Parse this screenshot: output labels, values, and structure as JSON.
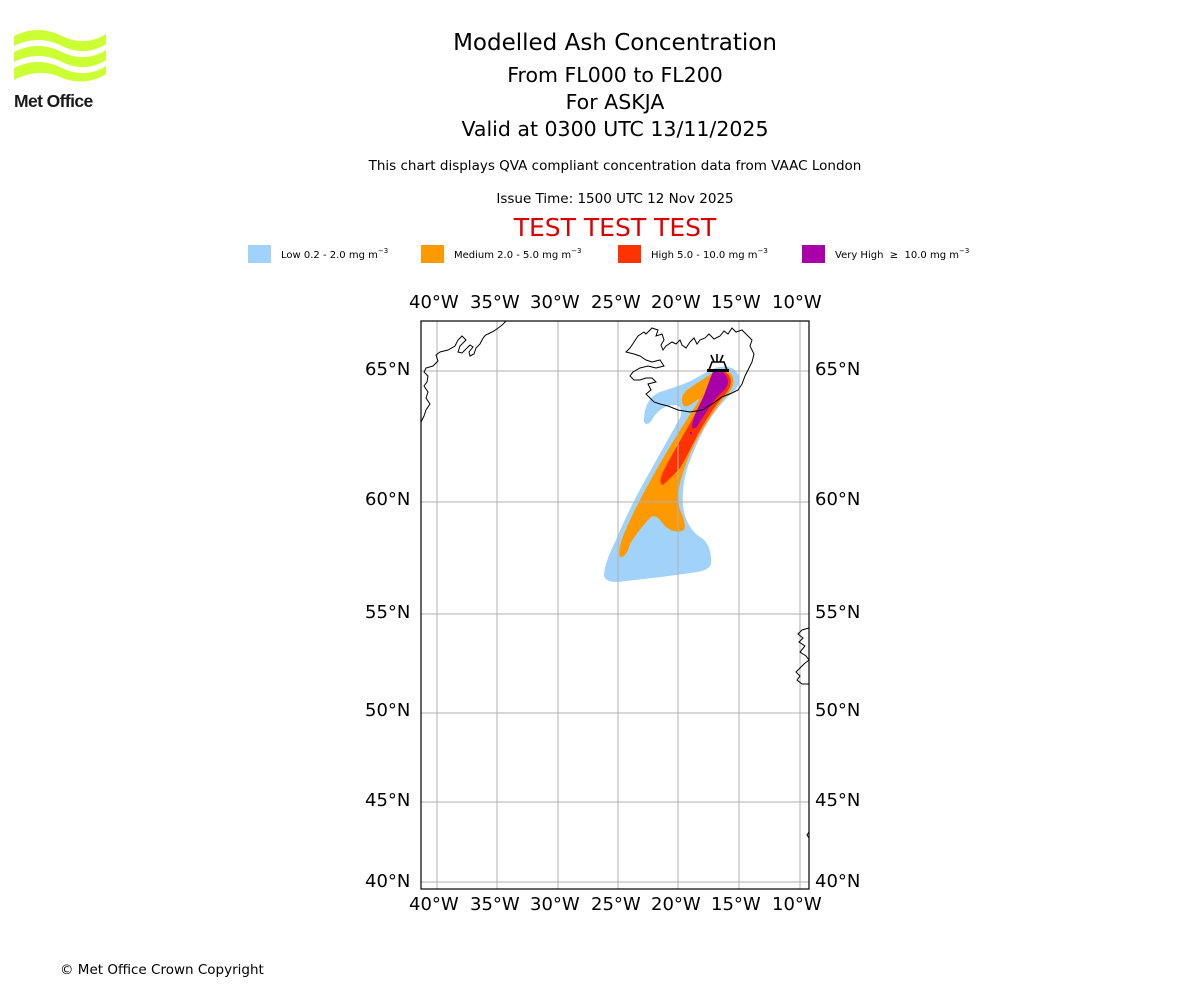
{
  "logo": {
    "text": "Met Office"
  },
  "header": {
    "title": "Modelled Ash Concentration",
    "level_range": "From FL000 to FL200",
    "volcano": "For ASKJA",
    "valid": "Valid at 0300 UTC 13/11/2025",
    "subtitle": "This chart displays QVA compliant concentration data from VAAC London",
    "issue_time": "Issue Time: 1500 UTC 12 Nov 2025",
    "test_banner": "TEST TEST TEST",
    "test_color": "#dd0000"
  },
  "legend": [
    {
      "label": "Low 0.2 - 2.0 mg m",
      "exp": "−3",
      "color": "#a0d2fa"
    },
    {
      "label": "Medium 2.0 - 5.0 mg m",
      "exp": "−3",
      "color": "#ff9900"
    },
    {
      "label": "High 5.0 - 10.0 mg m",
      "exp": "−3",
      "color": "#ff3300"
    },
    {
      "label": "Very High  ≥  10.0 mg m",
      "exp": "−3",
      "color": "#aa00aa"
    }
  ],
  "map": {
    "lon_ticks": [
      "40°W",
      "35°W",
      "30°W",
      "25°W",
      "20°W",
      "15°W",
      "10°W"
    ],
    "lat_ticks": [
      "65°N",
      "60°N",
      "55°N",
      "50°N",
      "45°N",
      "40°N"
    ],
    "volcano_icon": "volcano-icon"
  },
  "footer": {
    "copyright": "© Met Office Crown Copyright"
  }
}
